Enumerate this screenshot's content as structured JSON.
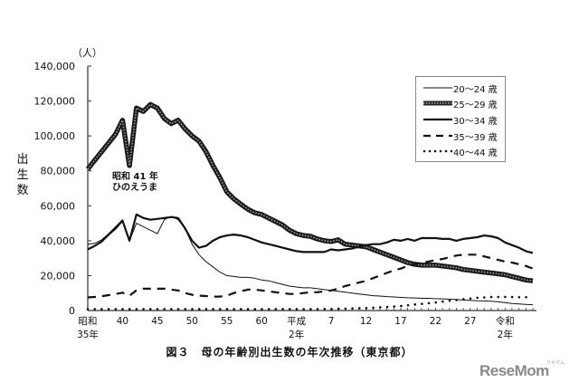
{
  "chart_data": {
    "type": "line",
    "title": "図３　母の年齢別出生数の年次推移（東京都）",
    "xlabel": "",
    "ylabel": "出生数",
    "y_unit": "（人）",
    "ylim": [
      0,
      140000
    ],
    "yticks": [
      0,
      20000,
      40000,
      60000,
      80000,
      100000,
      120000,
      140000
    ],
    "ytick_labels": [
      "0",
      "20,000",
      "40,000",
      "60,000",
      "80,000",
      "100,000",
      "120,000",
      "140,000"
    ],
    "xlim": [
      1960,
      2024
    ],
    "xticks": [
      {
        "year": 1960,
        "label": "昭和",
        "label2": "35年"
      },
      {
        "year": 1965,
        "label": "40",
        "label2": ""
      },
      {
        "year": 1970,
        "label": "45",
        "label2": ""
      },
      {
        "year": 1975,
        "label": "50",
        "label2": ""
      },
      {
        "year": 1980,
        "label": "55",
        "label2": ""
      },
      {
        "year": 1985,
        "label": "60",
        "label2": ""
      },
      {
        "year": 1990,
        "label": "平成",
        "label2": "2年"
      },
      {
        "year": 1995,
        "label": "7",
        "label2": ""
      },
      {
        "year": 2000,
        "label": "12",
        "label2": ""
      },
      {
        "year": 2005,
        "label": "17",
        "label2": ""
      },
      {
        "year": 2010,
        "label": "22",
        "label2": ""
      },
      {
        "year": 2015,
        "label": "27",
        "label2": ""
      },
      {
        "year": 2020,
        "label": "令和",
        "label2": "2年"
      }
    ],
    "grid": false,
    "legend_position": "upper right",
    "annotation": {
      "line1": "昭和 41 年",
      "line2": "ひのえうま",
      "year": 1966
    },
    "x": [
      1960,
      1961,
      1962,
      1963,
      1964,
      1965,
      1966,
      1967,
      1968,
      1969,
      1970,
      1971,
      1972,
      1973,
      1974,
      1975,
      1976,
      1977,
      1978,
      1979,
      1980,
      1981,
      1982,
      1983,
      1984,
      1985,
      1986,
      1987,
      1988,
      1989,
      1990,
      1991,
      1992,
      1993,
      1994,
      1995,
      1996,
      1997,
      1998,
      1999,
      2000,
      2001,
      2002,
      2003,
      2004,
      2005,
      2006,
      2007,
      2008,
      2009,
      2010,
      2011,
      2012,
      2013,
      2014,
      2015,
      2016,
      2017,
      2018,
      2019,
      2020,
      2021,
      2022,
      2023,
      2024
    ],
    "series": [
      {
        "name": "20～24 歳",
        "style": "thin",
        "values": [
          38000,
          38500,
          40500,
          44000,
          48000,
          52000,
          40000,
          50000,
          48000,
          46000,
          44000,
          52000,
          54000,
          52000,
          47000,
          38000,
          32000,
          28000,
          25000,
          22000,
          20000,
          19500,
          19000,
          19000,
          18500,
          17500,
          17000,
          16000,
          15000,
          14000,
          13500,
          13000,
          13000,
          12500,
          12000,
          11500,
          11000,
          10500,
          10000,
          9500,
          9000,
          8500,
          8300,
          8000,
          7800,
          7500,
          7300,
          7200,
          7000,
          7000,
          6800,
          6700,
          6500,
          6300,
          6000,
          5800,
          5600,
          5500,
          5300,
          5000,
          4500,
          4000,
          3800,
          3500,
          3300
        ]
      },
      {
        "name": "25～29 歳",
        "style": "thick-hatched",
        "values": [
          81000,
          86000,
          91000,
          96000,
          101000,
          109000,
          83000,
          116000,
          114000,
          118000,
          116000,
          110000,
          107000,
          109000,
          104000,
          100000,
          97000,
          91000,
          83000,
          76000,
          68000,
          64000,
          61000,
          58000,
          56000,
          55000,
          53000,
          51000,
          49000,
          46000,
          44000,
          43000,
          42500,
          41000,
          40000,
          39500,
          40500,
          38000,
          37500,
          37000,
          36500,
          35000,
          33500,
          32000,
          30500,
          29000,
          27500,
          26500,
          26000,
          26000,
          26000,
          25500,
          25000,
          24500,
          23500,
          23000,
          22500,
          22000,
          21500,
          21000,
          20500,
          19500,
          18500,
          17500,
          17000
        ]
      },
      {
        "name": "30～34 歳",
        "style": "medium",
        "values": [
          35000,
          37000,
          39500,
          43500,
          47000,
          51500,
          40000,
          55000,
          53000,
          52000,
          52500,
          53000,
          53500,
          53000,
          47000,
          40000,
          36000,
          37000,
          40000,
          42000,
          43000,
          43500,
          43000,
          42000,
          40500,
          39000,
          38000,
          37000,
          36000,
          35000,
          34000,
          33500,
          33500,
          33500,
          33500,
          35000,
          34500,
          35000,
          35500,
          36500,
          37500,
          38000,
          38000,
          39000,
          40500,
          40000,
          41000,
          40000,
          41500,
          41500,
          41500,
          41000,
          41000,
          40000,
          41000,
          41500,
          42000,
          43000,
          42500,
          41500,
          39000,
          37500,
          36000,
          34000,
          33000
        ]
      },
      {
        "name": "35～39 歳",
        "style": "dashed",
        "values": [
          7500,
          7800,
          8200,
          8800,
          9500,
          10200,
          8500,
          11500,
          12500,
          12500,
          12500,
          12500,
          12000,
          11500,
          10000,
          9000,
          8500,
          8300,
          8000,
          8000,
          8500,
          10000,
          11000,
          12000,
          12000,
          11500,
          11000,
          10500,
          10000,
          9500,
          9500,
          10000,
          10500,
          10500,
          11000,
          11500,
          12500,
          14000,
          15000,
          16000,
          17000,
          18500,
          20000,
          21500,
          23000,
          24000,
          25500,
          26500,
          27500,
          28000,
          29000,
          29500,
          30500,
          31500,
          32000,
          32000,
          32000,
          31000,
          30000,
          29000,
          28000,
          27500,
          26500,
          25500,
          24000
        ]
      },
      {
        "name": "40～44 歳",
        "style": "dotted",
        "values": [
          800,
          800,
          800,
          800,
          800,
          800,
          700,
          800,
          800,
          800,
          800,
          800,
          800,
          800,
          700,
          700,
          700,
          700,
          700,
          700,
          700,
          700,
          700,
          700,
          700,
          700,
          700,
          700,
          700,
          700,
          700,
          700,
          800,
          800,
          900,
          900,
          1000,
          1100,
          1200,
          1300,
          1400,
          1600,
          1800,
          2000,
          2300,
          2600,
          3000,
          3400,
          3800,
          4200,
          4600,
          5100,
          5600,
          6000,
          6500,
          6900,
          7300,
          7500,
          7700,
          7800,
          7800,
          7700,
          7600,
          7600,
          7500
        ]
      }
    ]
  },
  "page": {
    "y_axis_label": "出生数",
    "unit": "（人）",
    "caption": "図３　母の年齢別出生数の年次推移（東京都）",
    "annotation_line1": "昭和 41 年",
    "annotation_line2": "ひのえうま",
    "watermark": "ReseMom",
    "watermark_sub": "リセマム",
    "legend": [
      "20～24 歳",
      "25～29 歳",
      "30～34 歳",
      "35～39 歳",
      "40～44 歳"
    ]
  }
}
